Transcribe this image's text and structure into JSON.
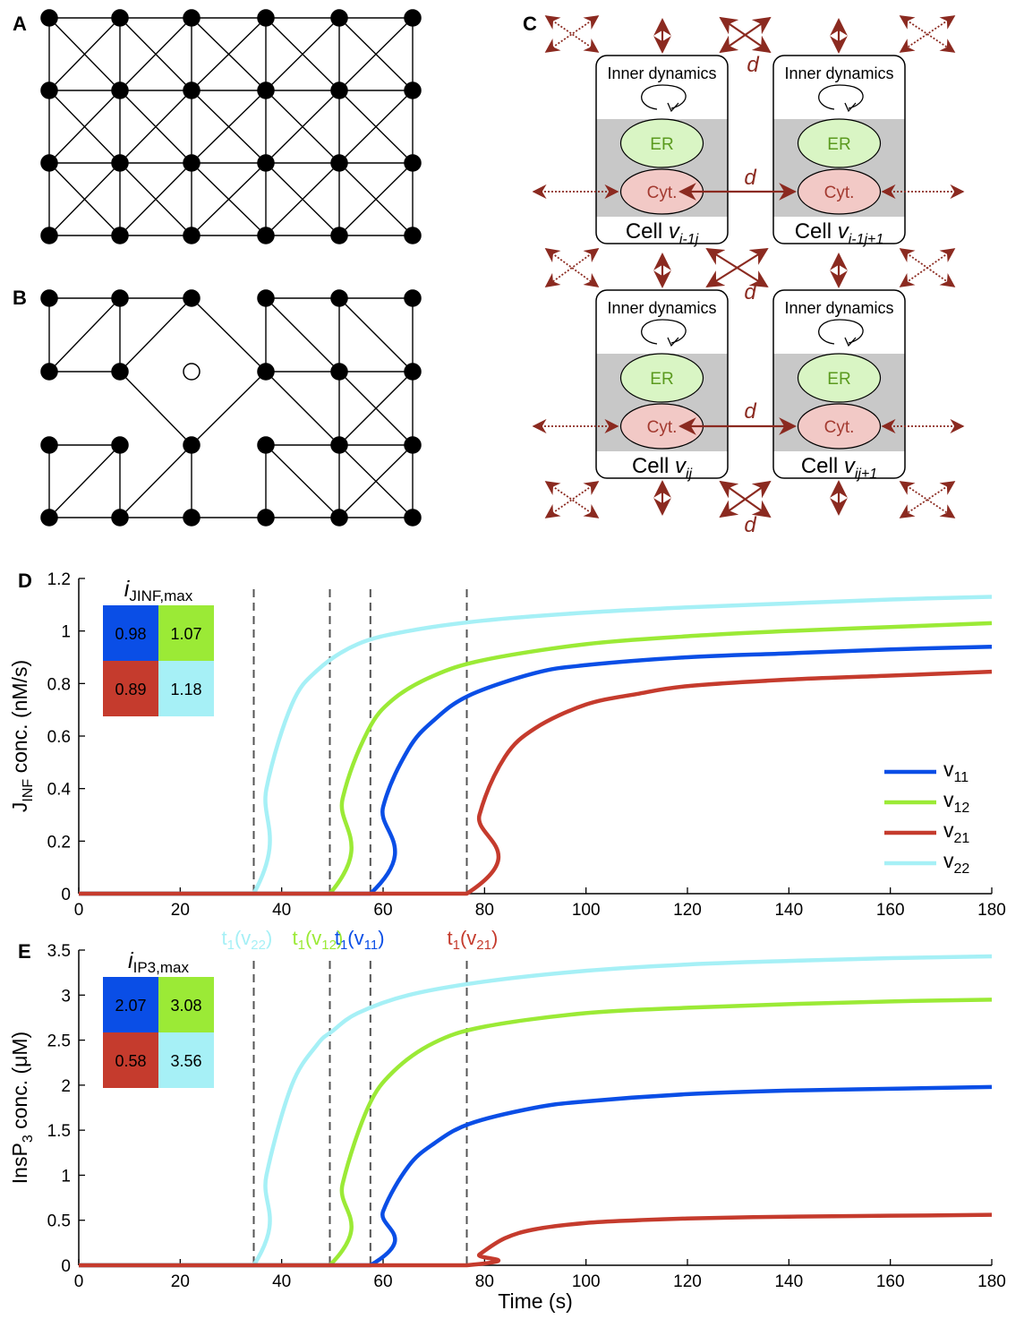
{
  "panels": {
    "A": "A",
    "B": "B",
    "C": "C",
    "D": "D",
    "E": "E"
  },
  "diagram_c": {
    "inner_label": "Inner dynamics",
    "er_label": "ER",
    "cyt_label": "Cyt.",
    "coupling_label": "d",
    "cell_prefix": "Cell ",
    "cells": [
      {
        "pos": "top-left",
        "sub": "i-1j"
      },
      {
        "pos": "top-right",
        "sub": "i-1j+1"
      },
      {
        "pos": "bottom-left",
        "sub": "ij"
      },
      {
        "pos": "bottom-right",
        "sub": "ij+1"
      }
    ],
    "colors": {
      "arrow": "#8b2a20",
      "er_fill": "#d9f5c4",
      "er_text": "#5a9a1e",
      "cyt_fill": "#f2c9c6",
      "cyt_text": "#a33a30",
      "band": "#c8c8c8"
    }
  },
  "colors": {
    "v11": "#0a4ee6",
    "v12": "#9bea36",
    "v21": "#c53b2d",
    "v22": "#a6f0f6",
    "dashed": "#555555"
  },
  "chart_data": [
    {
      "type": "line",
      "panel": "D",
      "ylabel_main": "J",
      "ylabel_sub": "INF",
      "ylabel_rest": " conc. (nM/s)",
      "xlim": [
        0,
        180
      ],
      "ylim": [
        0,
        1.2
      ],
      "xticks": [
        "0",
        "20",
        "40",
        "60",
        "80",
        "100",
        "120",
        "140",
        "160",
        "180"
      ],
      "yticks": [
        "0",
        "0.2",
        "0.4",
        "0.6",
        "0.8",
        "1",
        "1.2"
      ],
      "legend": [
        "v11",
        "v12",
        "v21",
        "v22"
      ],
      "legend_placement": "right",
      "series": [
        {
          "name": "v11",
          "onset": 57.5,
          "x": [
            0,
            57.5,
            60,
            65,
            70,
            77,
            90,
            100,
            120,
            140,
            160,
            180
          ],
          "y": [
            0,
            0,
            0.33,
            0.55,
            0.66,
            0.755,
            0.84,
            0.87,
            0.9,
            0.915,
            0.93,
            0.94
          ]
        },
        {
          "name": "v12",
          "onset": 49.5,
          "x": [
            0,
            49.5,
            52,
            57,
            62,
            70,
            80,
            100,
            120,
            140,
            160,
            180
          ],
          "y": [
            0,
            0,
            0.36,
            0.62,
            0.74,
            0.83,
            0.89,
            0.95,
            0.98,
            1.0,
            1.015,
            1.03
          ]
        },
        {
          "name": "v21",
          "onset": 76.5,
          "x": [
            0,
            76.5,
            79,
            84,
            90,
            100,
            110,
            120,
            140,
            160,
            180
          ],
          "y": [
            0,
            0,
            0.3,
            0.52,
            0.63,
            0.72,
            0.76,
            0.79,
            0.815,
            0.83,
            0.845
          ]
        },
        {
          "name": "v22",
          "onset": 34.5,
          "x": [
            0,
            34.5,
            37,
            42,
            47,
            55,
            65,
            80,
            100,
            120,
            140,
            160,
            180
          ],
          "y": [
            0,
            0,
            0.4,
            0.72,
            0.85,
            0.95,
            1.0,
            1.04,
            1.07,
            1.09,
            1.105,
            1.12,
            1.13
          ]
        }
      ],
      "onset_markers": [
        34.5,
        49.5,
        57.5,
        76.5
      ],
      "onset_labels": [
        {
          "base": "t",
          "sub1": "1",
          "open": "(v",
          "sub2": "22",
          "close": ")",
          "series": "v22",
          "x": 34.5
        },
        {
          "base": "t",
          "sub1": "1",
          "open": "(v",
          "sub2": "12",
          "close": ")",
          "series": "v12",
          "x": 49.5
        },
        {
          "base": "t",
          "sub1": "1",
          "open": "(v",
          "sub2": "11",
          "close": ")",
          "series": "v11",
          "x": 57.5
        },
        {
          "base": "t",
          "sub1": "1",
          "open": "(v",
          "sub2": "21",
          "close": ")",
          "series": "v21",
          "x": 76.5
        }
      ],
      "heatmap": {
        "title_main": "i",
        "title_sub": "JINF,max",
        "values": [
          [
            "0.98",
            "1.07"
          ],
          [
            "0.89",
            "1.18"
          ]
        ],
        "cell_series": [
          [
            "v11",
            "v12"
          ],
          [
            "v21",
            "v22"
          ]
        ]
      }
    },
    {
      "type": "line",
      "panel": "E",
      "ylabel_main": "InsP",
      "ylabel_sub": "3",
      "ylabel_rest": " conc. (μM)",
      "xlabel": "Time (s)",
      "xlim": [
        0,
        180
      ],
      "ylim": [
        0,
        3.5
      ],
      "xticks": [
        "0",
        "20",
        "40",
        "60",
        "80",
        "100",
        "120",
        "140",
        "160",
        "180"
      ],
      "yticks": [
        "0",
        "0.5",
        "1",
        "1.5",
        "2",
        "2.5",
        "3",
        "3.5"
      ],
      "series": [
        {
          "name": "v11",
          "onset": 57.5,
          "x": [
            0,
            57.5,
            60,
            65,
            70,
            77,
            90,
            100,
            120,
            140,
            160,
            180
          ],
          "y": [
            0,
            0,
            0.6,
            1.1,
            1.35,
            1.57,
            1.75,
            1.82,
            1.9,
            1.94,
            1.96,
            1.98
          ]
        },
        {
          "name": "v12",
          "onset": 49.5,
          "x": [
            0,
            49.5,
            52,
            57,
            62,
            70,
            80,
            100,
            120,
            140,
            160,
            180
          ],
          "y": [
            0,
            0,
            0.9,
            1.75,
            2.15,
            2.47,
            2.65,
            2.8,
            2.86,
            2.9,
            2.93,
            2.95
          ]
        },
        {
          "name": "v21",
          "onset": 76.5,
          "x": [
            0,
            76.5,
            79,
            84,
            90,
            100,
            110,
            120,
            140,
            160,
            180
          ],
          "y": [
            0,
            0,
            0.12,
            0.3,
            0.4,
            0.47,
            0.5,
            0.52,
            0.54,
            0.55,
            0.56
          ]
        },
        {
          "name": "v22",
          "onset": 34.5,
          "x": [
            0,
            34.5,
            37,
            42,
            47,
            50,
            55,
            65,
            80,
            100,
            120,
            140,
            160,
            180
          ],
          "y": [
            0,
            0,
            1.0,
            2.0,
            2.45,
            2.6,
            2.8,
            3.0,
            3.15,
            3.27,
            3.34,
            3.38,
            3.41,
            3.43
          ]
        }
      ],
      "onset_markers": [
        34.5,
        49.5,
        57.5,
        76.5
      ],
      "heatmap": {
        "title_main": "i",
        "title_sub": "IP3,max",
        "values": [
          [
            "2.07",
            "3.08"
          ],
          [
            "0.58",
            "3.56"
          ]
        ],
        "cell_series": [
          [
            "v11",
            "v12"
          ],
          [
            "v21",
            "v22"
          ]
        ]
      }
    }
  ]
}
